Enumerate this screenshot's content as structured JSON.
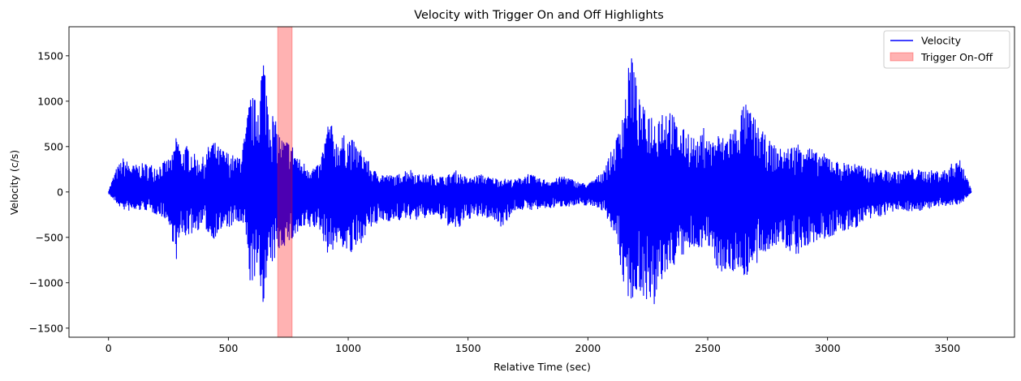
{
  "chart_data": {
    "type": "line",
    "title": "Velocity with Trigger On and Off Highlights",
    "xlabel": "Relative Time (sec)",
    "ylabel": "Velocity (c/s)",
    "xlim": [
      -165,
      3780
    ],
    "ylim": [
      -1600,
      1820
    ],
    "xticks": [
      0,
      500,
      1000,
      1500,
      2000,
      2500,
      3000,
      3500
    ],
    "yticks": [
      -1500,
      -1000,
      -500,
      0,
      500,
      1000,
      1500
    ],
    "grid": false,
    "legend_position": "top-right",
    "series": [
      {
        "name": "Velocity",
        "color": "#0000ff",
        "envelope": [
          [
            0,
            20,
            -20
          ],
          [
            30,
            250,
            -120
          ],
          [
            60,
            380,
            -200
          ],
          [
            100,
            300,
            -220
          ],
          [
            150,
            320,
            -200
          ],
          [
            200,
            300,
            -250
          ],
          [
            240,
            350,
            -300
          ],
          [
            270,
            420,
            -570
          ],
          [
            285,
            720,
            -780
          ],
          [
            300,
            460,
            -500
          ],
          [
            330,
            520,
            -490
          ],
          [
            370,
            380,
            -430
          ],
          [
            400,
            390,
            -380
          ],
          [
            430,
            600,
            -550
          ],
          [
            460,
            500,
            -450
          ],
          [
            500,
            440,
            -400
          ],
          [
            540,
            380,
            -350
          ],
          [
            570,
            640,
            -420
          ],
          [
            590,
            1080,
            -1010
          ],
          [
            620,
            1010,
            -960
          ],
          [
            645,
            1570,
            -1230
          ],
          [
            670,
            1000,
            -900
          ],
          [
            700,
            760,
            -710
          ],
          [
            720,
            600,
            -620
          ],
          [
            760,
            560,
            -560
          ],
          [
            800,
            350,
            -450
          ],
          [
            850,
            280,
            -400
          ],
          [
            880,
            300,
            -420
          ],
          [
            920,
            830,
            -720
          ],
          [
            950,
            580,
            -590
          ],
          [
            980,
            630,
            -620
          ],
          [
            1010,
            610,
            -720
          ],
          [
            1040,
            500,
            -640
          ],
          [
            1070,
            430,
            -480
          ],
          [
            1100,
            250,
            -400
          ],
          [
            1150,
            200,
            -320
          ],
          [
            1200,
            180,
            -330
          ],
          [
            1250,
            270,
            -300
          ],
          [
            1300,
            190,
            -320
          ],
          [
            1350,
            200,
            -260
          ],
          [
            1400,
            170,
            -340
          ],
          [
            1450,
            240,
            -450
          ],
          [
            1500,
            150,
            -300
          ],
          [
            1550,
            200,
            -280
          ],
          [
            1600,
            160,
            -300
          ],
          [
            1640,
            150,
            -390
          ],
          [
            1700,
            140,
            -200
          ],
          [
            1750,
            210,
            -200
          ],
          [
            1800,
            150,
            -200
          ],
          [
            1850,
            130,
            -180
          ],
          [
            1900,
            190,
            -160
          ],
          [
            1950,
            120,
            -160
          ],
          [
            2000,
            90,
            -150
          ],
          [
            2050,
            200,
            -180
          ],
          [
            2090,
            400,
            -330
          ],
          [
            2120,
            600,
            -560
          ],
          [
            2140,
            900,
            -900
          ],
          [
            2150,
            1000,
            -1050
          ],
          [
            2165,
            1250,
            -1150
          ],
          [
            2180,
            1670,
            -1210
          ],
          [
            2210,
            1050,
            -1100
          ],
          [
            2240,
            900,
            -1170
          ],
          [
            2260,
            930,
            -1260
          ],
          [
            2275,
            800,
            -1460
          ],
          [
            2300,
            940,
            -1020
          ],
          [
            2340,
            960,
            -880
          ],
          [
            2380,
            700,
            -750
          ],
          [
            2420,
            690,
            -680
          ],
          [
            2460,
            550,
            -620
          ],
          [
            2490,
            770,
            -600
          ],
          [
            2510,
            560,
            -650
          ],
          [
            2540,
            650,
            -850
          ],
          [
            2570,
            600,
            -900
          ],
          [
            2600,
            720,
            -930
          ],
          [
            2620,
            740,
            -840
          ],
          [
            2650,
            1000,
            -950
          ],
          [
            2680,
            900,
            -900
          ],
          [
            2720,
            700,
            -780
          ],
          [
            2760,
            560,
            -620
          ],
          [
            2800,
            480,
            -600
          ],
          [
            2840,
            500,
            -660
          ],
          [
            2870,
            540,
            -700
          ],
          [
            2900,
            580,
            -660
          ],
          [
            2950,
            440,
            -560
          ],
          [
            3000,
            420,
            -520
          ],
          [
            3050,
            320,
            -460
          ],
          [
            3100,
            340,
            -420
          ],
          [
            3150,
            280,
            -350
          ],
          [
            3200,
            260,
            -290
          ],
          [
            3250,
            240,
            -250
          ],
          [
            3300,
            230,
            -200
          ],
          [
            3350,
            260,
            -220
          ],
          [
            3400,
            240,
            -200
          ],
          [
            3450,
            240,
            -180
          ],
          [
            3500,
            250,
            -160
          ],
          [
            3540,
            400,
            -150
          ],
          [
            3570,
            280,
            -100
          ],
          [
            3600,
            20,
            -10
          ]
        ]
      }
    ],
    "highlight": {
      "name": "Trigger On-Off",
      "x_start": 706,
      "x_end": 766,
      "color": "#ff0000",
      "alpha": 0.3
    }
  }
}
